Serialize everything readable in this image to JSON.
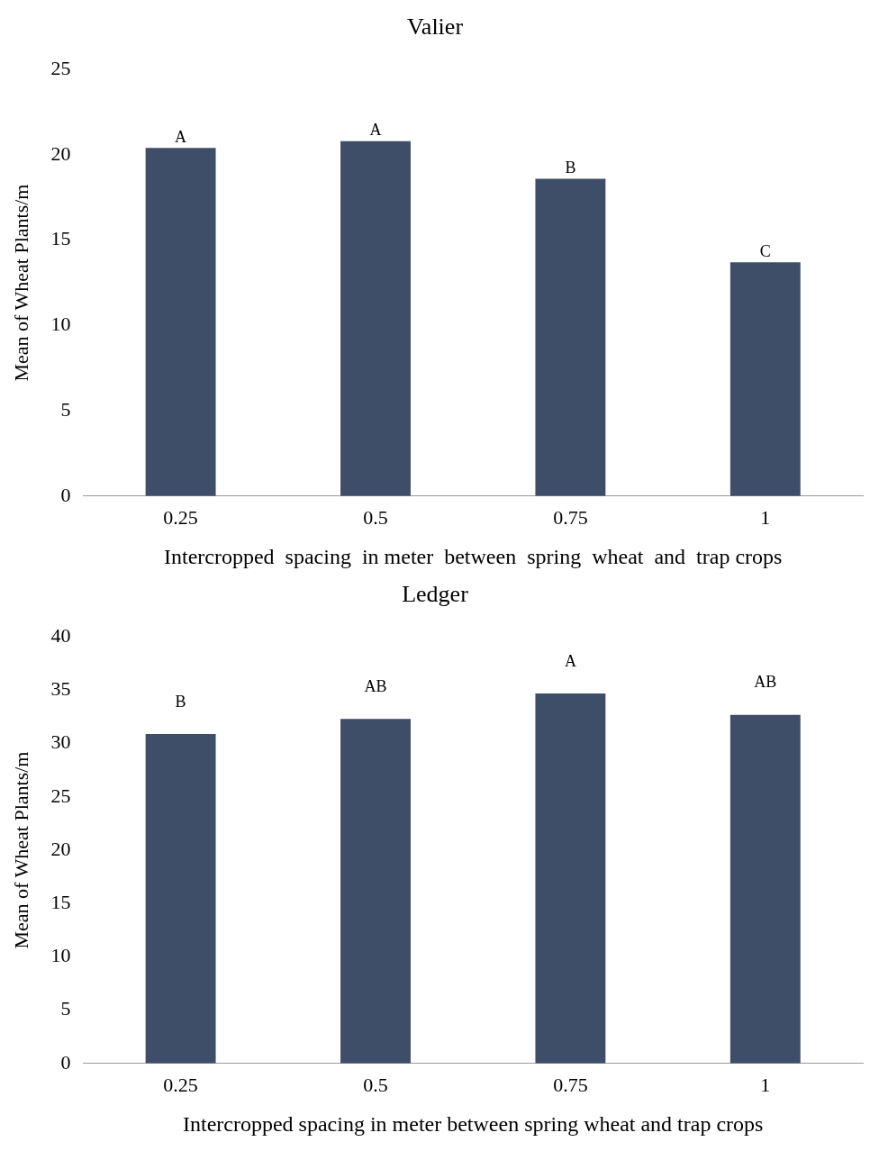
{
  "chart_data": [
    {
      "type": "bar",
      "title": "Valier",
      "xlabel": "Intercropped  spacing  in meter  between  spring  wheat  and  trap crops",
      "ylabel": "Mean of Wheat Plants/m",
      "categories": [
        "0.25",
        "0.5",
        "0.75",
        "1"
      ],
      "values": [
        20.4,
        20.8,
        18.6,
        13.7
      ],
      "color": "#3f4e68",
      "ylim": [
        0,
        25
      ],
      "yticks": [
        0,
        5,
        10,
        15,
        20,
        25
      ],
      "grid": false,
      "legend": false,
      "annotations": [
        {
          "text": "A",
          "x": "0.25",
          "y": 20.4
        },
        {
          "text": "A",
          "x": "0.5",
          "y": 20.8
        },
        {
          "text": "B",
          "x": "0.75",
          "y": 18.6
        },
        {
          "text": "C",
          "x": "1",
          "y": 13.7
        }
      ]
    },
    {
      "type": "bar",
      "title": "Ledger",
      "xlabel": "Intercropped spacing in meter between spring wheat and trap crops",
      "ylabel": "Mean of Wheat Plants/m",
      "categories": [
        "0.25",
        "0.5",
        "0.75",
        "1"
      ],
      "values": [
        30.9,
        32.3,
        34.7,
        32.7
      ],
      "color": "#3f4e68",
      "ylim": [
        0,
        40
      ],
      "yticks": [
        0,
        5,
        10,
        15,
        20,
        25,
        30,
        35,
        40
      ],
      "grid": false,
      "legend": false,
      "annotations": [
        {
          "text": "B",
          "x": "0.25",
          "y": 30.9
        },
        {
          "text": "AB",
          "x": "0.5",
          "y": 32.3
        },
        {
          "text": "A",
          "x": "0.75",
          "y": 34.7
        },
        {
          "text": "AB",
          "x": "1",
          "y": 32.7
        }
      ]
    }
  ]
}
